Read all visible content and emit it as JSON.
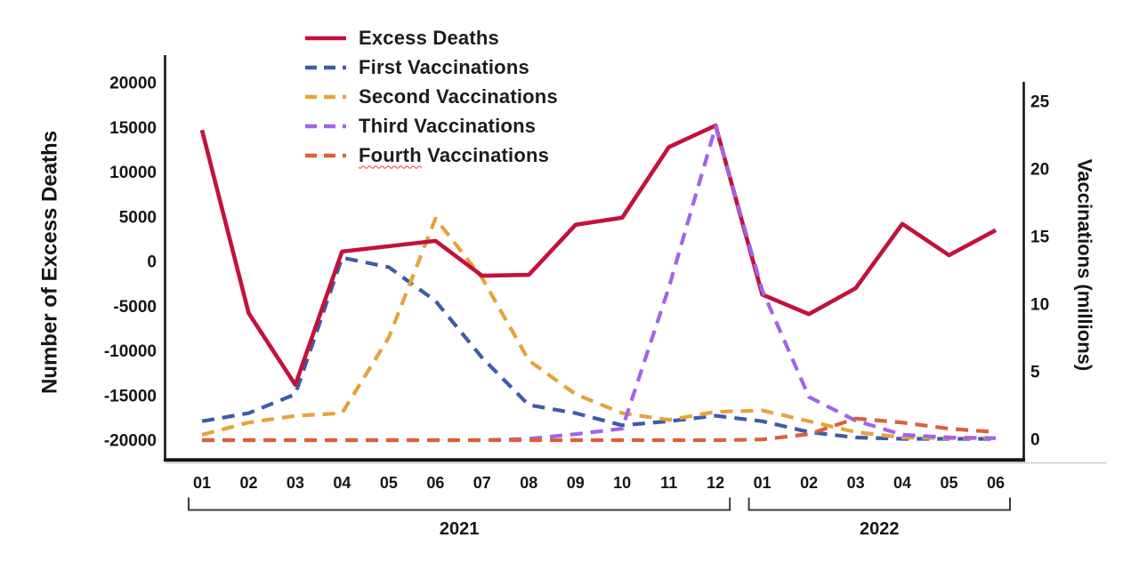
{
  "chart_data": {
    "type": "line",
    "title": "",
    "x_tick_labels": [
      "01",
      "02",
      "03",
      "04",
      "05",
      "06",
      "07",
      "08",
      "09",
      "10",
      "11",
      "12",
      "01",
      "02",
      "03",
      "04",
      "05",
      "06"
    ],
    "year_groups": [
      {
        "label": "2021",
        "from_month_index": 0,
        "to_month_index": 11
      },
      {
        "label": "2022",
        "from_month_index": 12,
        "to_month_index": 17
      }
    ],
    "left_axis": {
      "label": "Number of Excess Deaths",
      "ticks": [
        20000,
        15000,
        10000,
        5000,
        0,
        -5000,
        -10000,
        -15000,
        -20000
      ],
      "range": [
        -20000,
        20000
      ]
    },
    "right_axis": {
      "label": "Vaccinations (millions)",
      "ticks": [
        25,
        20,
        15,
        10,
        5,
        0
      ],
      "range": [
        0,
        25
      ]
    },
    "legend_position": "top-left-inside",
    "grid": false,
    "series": [
      {
        "name": "Excess Deaths",
        "axis": "left",
        "line_style": "solid",
        "color": "#c4113b",
        "values": [
          14800,
          -5700,
          -13700,
          1200,
          1800,
          2400,
          -1500,
          -1400,
          4200,
          5000,
          12900,
          15300,
          -3600,
          -5800,
          -2900,
          4300,
          800,
          3600
        ]
      },
      {
        "name": "First Vaccinations",
        "axis": "right",
        "line_style": "dashed",
        "color": "#3f5ba9",
        "values": [
          1.4,
          2.0,
          3.4,
          13.5,
          12.8,
          10.3,
          6.1,
          2.6,
          2.0,
          1.1,
          1.4,
          1.8,
          1.4,
          0.6,
          0.2,
          0.1,
          0.1,
          0.1
        ]
      },
      {
        "name": "Second Vaccinations",
        "axis": "right",
        "line_style": "dashed",
        "color": "#e8a23b",
        "values": [
          0.4,
          1.3,
          1.8,
          2.0,
          7.6,
          16.4,
          12.0,
          5.9,
          3.4,
          2.0,
          1.5,
          2.1,
          2.2,
          1.4,
          0.6,
          0.2,
          0.15,
          0.15
        ]
      },
      {
        "name": "Third Vaccinations",
        "axis": "right",
        "line_style": "dashed",
        "color": "#a263ea",
        "values": [
          0,
          0,
          0,
          0,
          0,
          0,
          0,
          0.1,
          0.45,
          0.85,
          11.3,
          23.2,
          11.1,
          3.2,
          1.45,
          0.4,
          0.2,
          0.15
        ]
      },
      {
        "name": "Fourth Vaccinations",
        "axis": "right",
        "line_style": "dashed",
        "color": "#dd5f3b",
        "spellcheck_underline_first_word": true,
        "values": [
          0,
          0,
          0,
          0,
          0,
          0,
          0,
          0,
          0,
          0,
          0,
          0,
          0.05,
          0.45,
          1.6,
          1.3,
          0.85,
          0.6
        ]
      }
    ]
  }
}
